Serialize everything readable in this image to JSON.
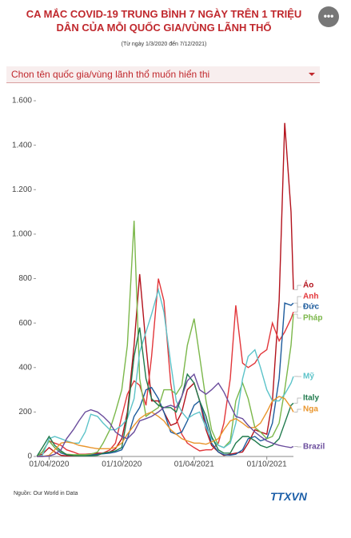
{
  "header": {
    "share": "•••"
  },
  "chart_data": {
    "type": "line",
    "title": "CA MẮC COVID-19 TRUNG BÌNH 7 NGÀY TRÊN 1 TRIỆU DÂN CỦA MỖI QUỐC GIA/VÙNG LÃNH THỔ",
    "subtitle": "(Từ ngày 1/3/2020 đến 7/12/2021)",
    "selector": "Chon tên quốc gia/vùng lãnh thổ muốn hiển thi",
    "x": [
      "2020-03-01",
      "2020-03-15",
      "2020-04-01",
      "2020-04-15",
      "2020-05-01",
      "2020-05-15",
      "2020-06-01",
      "2020-06-15",
      "2020-07-01",
      "2020-07-15",
      "2020-08-01",
      "2020-08-15",
      "2020-09-01",
      "2020-09-15",
      "2020-10-01",
      "2020-10-15",
      "2020-11-01",
      "2020-11-15",
      "2020-12-01",
      "2020-12-15",
      "2021-01-01",
      "2021-01-15",
      "2021-02-01",
      "2021-02-15",
      "2021-03-01",
      "2021-03-15",
      "2021-04-01",
      "2021-04-15",
      "2021-05-01",
      "2021-05-15",
      "2021-06-01",
      "2021-06-15",
      "2021-07-01",
      "2021-07-15",
      "2021-08-01",
      "2021-08-15",
      "2021-09-01",
      "2021-09-15",
      "2021-10-01",
      "2021-10-15",
      "2021-11-01",
      "2021-11-15",
      "2021-12-01",
      "2021-12-07"
    ],
    "xlim": [
      "2020-03-01",
      "2021-12-07"
    ],
    "xticks": [
      {
        "value": "2020-04-01",
        "label": "01/04/2020"
      },
      {
        "value": "2020-10-01",
        "label": "01/10/2020"
      },
      {
        "value": "2021-04-01",
        "label": "01/04/2021"
      },
      {
        "value": "2021-10-01",
        "label": "01/10/2021"
      }
    ],
    "ylim": [
      0,
      1600
    ],
    "yticks": [
      0,
      200,
      400,
      600,
      800,
      {
        "value": 1000,
        "label": "1.000"
      },
      {
        "value": 1200,
        "label": "1.200"
      },
      {
        "value": 1400,
        "label": "1.400"
      },
      {
        "value": 1600,
        "label": "1.600"
      }
    ],
    "series": [
      {
        "name": "Áo",
        "color": "#b3121c",
        "values": [
          0,
          10,
          40,
          20,
          5,
          3,
          3,
          4,
          10,
          12,
          15,
          15,
          20,
          35,
          80,
          200,
          500,
          820,
          500,
          250,
          250,
          200,
          140,
          150,
          200,
          300,
          330,
          250,
          120,
          50,
          20,
          5,
          10,
          15,
          20,
          60,
          120,
          110,
          100,
          250,
          700,
          1500,
          1100,
          750
        ]
      },
      {
        "name": "Anh",
        "color": "#e2363a",
        "values": [
          0,
          20,
          70,
          60,
          50,
          30,
          20,
          10,
          10,
          10,
          10,
          15,
          30,
          60,
          180,
          280,
          340,
          320,
          230,
          450,
          800,
          700,
          330,
          170,
          100,
          60,
          40,
          25,
          30,
          30,
          60,
          150,
          350,
          680,
          420,
          400,
          420,
          460,
          480,
          600,
          520,
          560,
          620,
          650
        ]
      },
      {
        "name": "Đức",
        "color": "#1d5b9c",
        "values": [
          0,
          20,
          70,
          40,
          15,
          8,
          5,
          4,
          5,
          6,
          10,
          12,
          15,
          20,
          30,
          80,
          180,
          220,
          300,
          310,
          260,
          200,
          110,
          100,
          110,
          160,
          230,
          250,
          150,
          60,
          20,
          8,
          6,
          10,
          30,
          80,
          90,
          70,
          80,
          150,
          350,
          690,
          680,
          690
        ]
      },
      {
        "name": "Pháp",
        "color": "#7bb74a",
        "values": [
          0,
          20,
          70,
          40,
          20,
          10,
          8,
          8,
          8,
          10,
          20,
          60,
          120,
          200,
          300,
          500,
          1060,
          350,
          180,
          200,
          220,
          300,
          300,
          280,
          320,
          500,
          620,
          450,
          250,
          120,
          50,
          40,
          70,
          250,
          330,
          260,
          130,
          110,
          80,
          90,
          150,
          300,
          500,
          640
        ]
      },
      {
        "name": "Mỹ",
        "color": "#5cc3c9",
        "values": [
          0,
          5,
          80,
          90,
          80,
          70,
          60,
          60,
          110,
          190,
          180,
          150,
          120,
          120,
          140,
          170,
          260,
          470,
          560,
          640,
          750,
          650,
          420,
          250,
          200,
          170,
          190,
          200,
          130,
          80,
          50,
          40,
          60,
          150,
          350,
          450,
          480,
          400,
          300,
          250,
          250,
          280,
          330,
          360
        ]
      },
      {
        "name": "Italy",
        "color": "#1f7a4c",
        "values": [
          0,
          40,
          90,
          50,
          25,
          8,
          4,
          3,
          3,
          3,
          5,
          15,
          20,
          25,
          40,
          180,
          450,
          580,
          350,
          260,
          230,
          220,
          220,
          200,
          270,
          370,
          330,
          250,
          180,
          90,
          30,
          15,
          15,
          60,
          90,
          90,
          70,
          50,
          40,
          50,
          80,
          150,
          230,
          240
        ]
      },
      {
        "name": "Nga",
        "color": "#e9952c",
        "values": [
          0,
          0,
          5,
          30,
          60,
          65,
          60,
          50,
          45,
          40,
          35,
          35,
          35,
          40,
          60,
          100,
          140,
          170,
          190,
          200,
          180,
          160,
          120,
          100,
          80,
          70,
          60,
          60,
          55,
          65,
          80,
          120,
          160,
          170,
          150,
          130,
          130,
          150,
          200,
          250,
          270,
          260,
          220,
          200
        ]
      },
      {
        "name": "Brazil",
        "color": "#6a4c9c",
        "values": [
          0,
          0,
          2,
          10,
          30,
          80,
          120,
          160,
          200,
          210,
          200,
          180,
          150,
          110,
          90,
          80,
          110,
          160,
          170,
          180,
          200,
          220,
          230,
          220,
          270,
          340,
          370,
          300,
          280,
          300,
          330,
          290,
          230,
          180,
          170,
          140,
          110,
          90,
          70,
          60,
          50,
          45,
          40,
          45
        ]
      }
    ],
    "source": "Nguồn: Our World in Data",
    "logo": "TTXVN"
  }
}
